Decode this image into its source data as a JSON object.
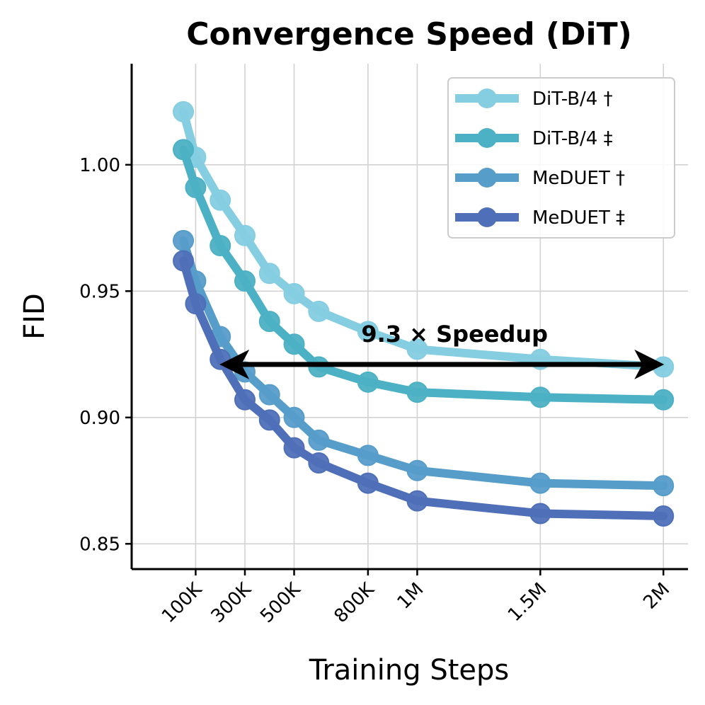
{
  "chart_data": {
    "type": "line",
    "title": "Convergence Speed (DiT)",
    "xlabel": "Training Steps",
    "ylabel": "FID",
    "xlim": [
      -160000,
      2100000
    ],
    "ylim": [
      0.84,
      1.04
    ],
    "xticks": [
      {
        "value": 100000,
        "label": "100K"
      },
      {
        "value": 300000,
        "label": "300K"
      },
      {
        "value": 500000,
        "label": "500K"
      },
      {
        "value": 800000,
        "label": "800K"
      },
      {
        "value": 1000000,
        "label": "1M"
      },
      {
        "value": 1500000,
        "label": "1.5M"
      },
      {
        "value": 2000000,
        "label": "2M"
      }
    ],
    "yticks": [
      {
        "value": 0.85,
        "label": "0.85"
      },
      {
        "value": 0.9,
        "label": "0.90"
      },
      {
        "value": 0.95,
        "label": "0.95"
      },
      {
        "value": 1.0,
        "label": "1.00"
      }
    ],
    "grid": true,
    "legend_position": "top-right",
    "x": [
      50000,
      100000,
      200000,
      300000,
      400000,
      500000,
      600000,
      800000,
      1000000,
      1500000,
      2000000
    ],
    "series": [
      {
        "name": "DiT-B/4 †",
        "color": "#85cde0",
        "values": [
          1.021,
          1.003,
          0.986,
          0.972,
          0.957,
          0.949,
          0.942,
          0.934,
          0.927,
          0.923,
          0.92
        ]
      },
      {
        "name": "DiT-B/4 ‡",
        "color": "#4cb1c4",
        "values": [
          1.006,
          0.991,
          0.968,
          0.954,
          0.938,
          0.929,
          0.92,
          0.914,
          0.91,
          0.908,
          0.907
        ]
      },
      {
        "name": "MeDUET †",
        "color": "#579dca",
        "values": [
          0.97,
          0.954,
          0.932,
          0.918,
          0.909,
          0.9,
          0.891,
          0.885,
          0.879,
          0.874,
          0.873
        ]
      },
      {
        "name": "MeDUET ‡",
        "color": "#4f70b8",
        "values": [
          0.962,
          0.945,
          0.923,
          0.907,
          0.899,
          0.888,
          0.882,
          0.874,
          0.867,
          0.862,
          0.861
        ]
      }
    ],
    "annotation": {
      "text": "9.3 × Speedup",
      "arrow_from": {
        "x": 200000,
        "y": 0.921
      },
      "arrow_to": {
        "x": 2000000,
        "y": 0.921
      }
    }
  }
}
